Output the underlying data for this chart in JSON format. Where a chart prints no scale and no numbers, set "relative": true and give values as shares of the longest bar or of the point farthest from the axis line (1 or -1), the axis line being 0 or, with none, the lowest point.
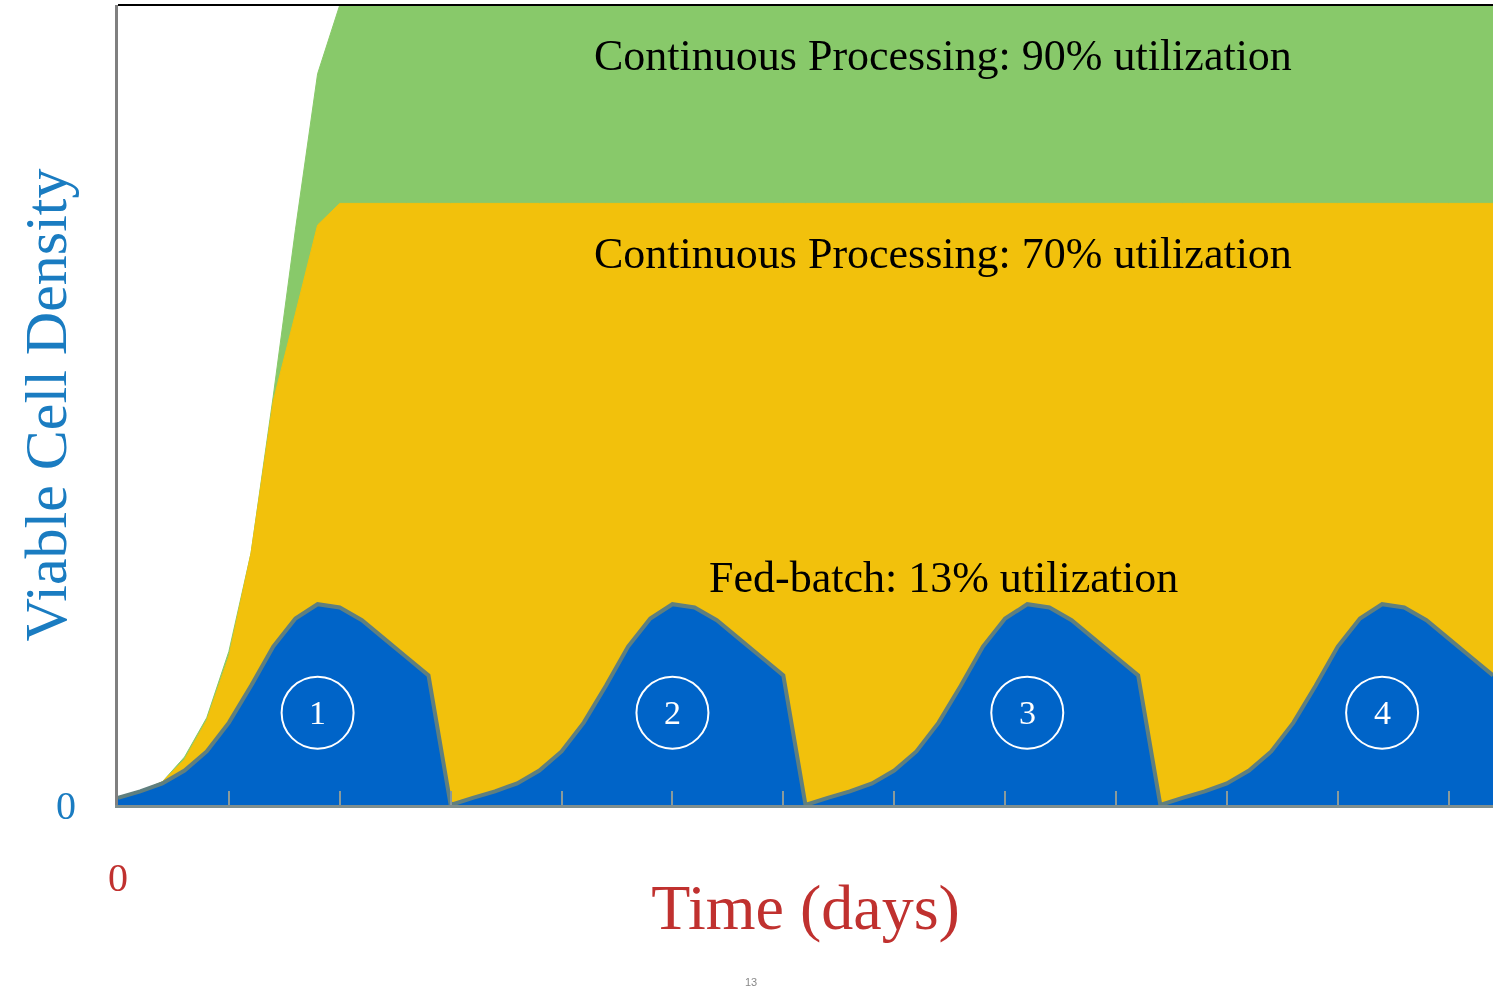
{
  "chart_data": {
    "type": "area",
    "relative": true,
    "ylabel": "Viable Cell Density",
    "xlabel": "Time (days)",
    "legend": false,
    "categories": [
      null,
      null,
      null,
      null,
      null,
      null,
      null,
      null,
      null,
      null,
      null,
      null,
      null,
      null,
      null,
      null,
      null,
      null,
      null,
      null,
      null,
      null,
      null,
      null,
      null,
      null,
      null,
      null,
      null,
      null,
      null,
      null,
      null,
      null,
      null,
      null,
      null,
      null,
      null,
      null,
      null,
      null,
      null,
      null,
      null,
      null,
      null,
      null,
      null,
      null,
      null,
      null,
      null,
      null,
      null,
      null,
      null,
      null,
      null,
      null,
      null,
      null,
      null
    ],
    "series": [
      {
        "name": "Continuous Processing: 90% utilization",
        "color": "#88c96a",
        "values": [
          0.009,
          0.017,
          0.029,
          0.06,
          0.109,
          0.192,
          0.315,
          0.511,
          0.719,
          0.914,
          1,
          1,
          1,
          1,
          1,
          1,
          1,
          1,
          1,
          1,
          1,
          1,
          1,
          1,
          1,
          1,
          1,
          1,
          1,
          1,
          1,
          1,
          1,
          1,
          1,
          1,
          1,
          1,
          1,
          1,
          1,
          1,
          1,
          1,
          1,
          1,
          1,
          1,
          1,
          1,
          1,
          1,
          1,
          1,
          1,
          1,
          1,
          1,
          1,
          1,
          1,
          1,
          1
        ]
      },
      {
        "name": "Continuous Processing: 70% utilization",
        "color": "#f2c10c",
        "values": [
          0.009,
          0.017,
          0.029,
          0.057,
          0.106,
          0.186,
          0.315,
          0.505,
          0.614,
          0.725,
          0.752,
          0.752,
          0.752,
          0.752,
          0.752,
          0.752,
          0.752,
          0.752,
          0.752,
          0.752,
          0.752,
          0.752,
          0.752,
          0.752,
          0.752,
          0.752,
          0.752,
          0.752,
          0.752,
          0.752,
          0.752,
          0.752,
          0.752,
          0.752,
          0.752,
          0.752,
          0.752,
          0.752,
          0.752,
          0.752,
          0.752,
          0.752,
          0.752,
          0.752,
          0.752,
          0.752,
          0.752,
          0.752,
          0.752,
          0.752,
          0.752,
          0.752,
          0.752,
          0.752,
          0.752,
          0.752,
          0.752,
          0.752,
          0.752,
          0.752,
          0.752,
          0.752,
          0.752
        ]
      },
      {
        "name": "Fed-batch: 13% utilization",
        "color": "#0064c8",
        "values": [
          0.009,
          0.017,
          0.027,
          0.043,
          0.067,
          0.103,
          0.149,
          0.198,
          0.233,
          0.251,
          0.247,
          0.231,
          0.208,
          0.185,
          0.162,
          0,
          0.009,
          0.017,
          0.027,
          0.043,
          0.067,
          0.103,
          0.149,
          0.198,
          0.233,
          0.251,
          0.247,
          0.231,
          0.208,
          0.185,
          0.162,
          0,
          0.009,
          0.017,
          0.027,
          0.043,
          0.067,
          0.103,
          0.149,
          0.198,
          0.233,
          0.251,
          0.247,
          0.231,
          0.208,
          0.185,
          0.162,
          0,
          0.009,
          0.017,
          0.027,
          0.043,
          0.067,
          0.103,
          0.149,
          0.198,
          0.233,
          0.251,
          0.247,
          0.231,
          0.208,
          0.185,
          0.162
        ]
      }
    ],
    "annotations": [
      "0",
      "0",
      "1",
      "2",
      "3",
      "4",
      "13"
    ]
  }
}
